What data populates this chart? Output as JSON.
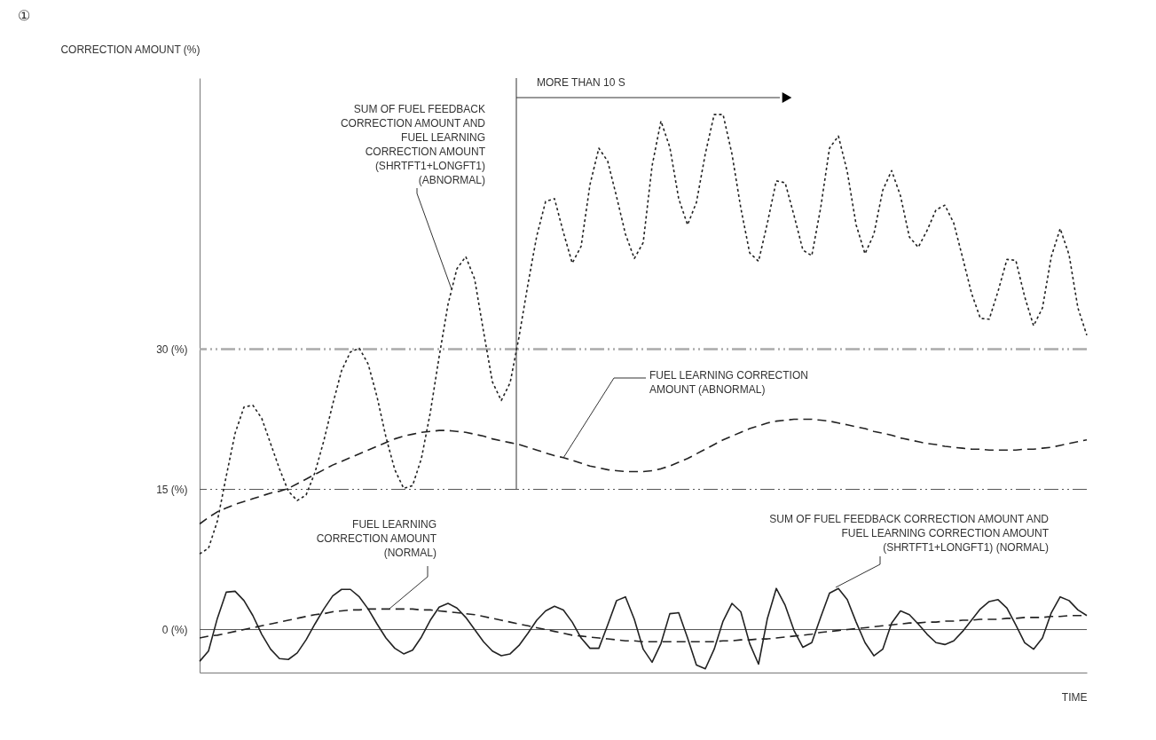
{
  "chart_data": {
    "type": "line",
    "xlabel": "TIME",
    "ylabel": "CORRECTION AMOUNT (%)",
    "categories": [
      null,
      null,
      null,
      null,
      null,
      null,
      null,
      null,
      null,
      null,
      null,
      null,
      null,
      null,
      null,
      null,
      null,
      null,
      null,
      null,
      null,
      null,
      null,
      null,
      null,
      null,
      null,
      null,
      null,
      null,
      null,
      null,
      null,
      null,
      null,
      null,
      null,
      null,
      null,
      null,
      null,
      null,
      null,
      null,
      null,
      null,
      null,
      null,
      null,
      null,
      null,
      null,
      null,
      null,
      null,
      null,
      null,
      null,
      null,
      null,
      null,
      null,
      null,
      null,
      null,
      null,
      null,
      null,
      null,
      null,
      null,
      null,
      null,
      null,
      null,
      null,
      null,
      null,
      null,
      null,
      null,
      null,
      null,
      null,
      null,
      null,
      null,
      null,
      null,
      null,
      null,
      null,
      null,
      null,
      null,
      null,
      null,
      null,
      null,
      null,
      null
    ],
    "ylim": [
      -4.6,
      59
    ],
    "yticks": [
      {
        "value": 0,
        "label": "0 (%)"
      },
      {
        "value": 15,
        "label": "15 (%)"
      },
      {
        "value": 30,
        "label": "30 (%)"
      }
    ],
    "tick_labels": "y",
    "grid": false,
    "marker": "none",
    "series": [
      {
        "color": "#222222",
        "line_style": "dotted",
        "values": [
          8.1,
          8.7,
          11.6,
          16.4,
          21.0,
          23.8,
          24.0,
          22.6,
          19.9,
          17.2,
          14.8,
          13.8,
          14.4,
          16.8,
          20.2,
          24.1,
          27.7,
          29.7,
          30.1,
          28.4,
          24.9,
          20.6,
          17.1,
          15.1,
          15.4,
          18.3,
          23.2,
          29.2,
          34.8,
          38.6,
          39.9,
          37.5,
          31.9,
          26.5,
          24.5,
          26.4,
          31.3,
          36.9,
          42.1,
          45.8,
          46.1,
          42.5,
          39.2,
          41.0,
          47.6,
          51.5,
          50.1,
          46.3,
          42.3,
          39.7,
          41.4,
          49.6,
          54.4,
          51.6,
          46.1,
          43.3,
          45.7,
          50.9,
          55.1,
          55.1,
          50.9,
          45.1,
          40.3,
          39.4,
          43.5,
          48.0,
          47.8,
          44.3,
          40.6,
          40.0,
          45.1,
          51.5,
          52.8,
          49.0,
          43.3,
          40.2,
          42.3,
          47.0,
          49.1,
          46.4,
          42.0,
          40.9,
          42.7,
          44.9,
          45.4,
          43.5,
          39.8,
          36.0,
          33.3,
          33.2,
          36.2,
          39.6,
          39.5,
          35.6,
          32.5,
          34.4,
          39.9,
          42.9,
          40.1,
          34.4,
          31.5
        ]
      },
      {
        "color": "#222222",
        "line_style": "dashed",
        "values": [
          11.3,
          12.0,
          12.6,
          13.0,
          13.4,
          13.7,
          14.0,
          14.3,
          14.6,
          14.8,
          15.1,
          15.6,
          16.1,
          16.6,
          17.1,
          17.6,
          18.0,
          18.4,
          18.8,
          19.2,
          19.6,
          20.0,
          20.4,
          20.7,
          20.9,
          21.1,
          21.2,
          21.3,
          21.3,
          21.2,
          21.1,
          20.9,
          20.7,
          20.4,
          20.2,
          20.0,
          19.8,
          19.5,
          19.2,
          18.9,
          18.6,
          18.4,
          18.1,
          17.8,
          17.5,
          17.3,
          17.1,
          17.0,
          16.9,
          16.9,
          16.9,
          17.0,
          17.2,
          17.5,
          17.9,
          18.3,
          18.8,
          19.3,
          19.8,
          20.3,
          20.7,
          21.1,
          21.5,
          21.8,
          22.1,
          22.3,
          22.4,
          22.5,
          22.5,
          22.5,
          22.4,
          22.3,
          22.1,
          21.9,
          21.7,
          21.5,
          21.2,
          21.0,
          20.8,
          20.5,
          20.3,
          20.1,
          19.9,
          19.8,
          19.6,
          19.5,
          19.4,
          19.3,
          19.3,
          19.2,
          19.2,
          19.2,
          19.2,
          19.3,
          19.3,
          19.4,
          19.5,
          19.7,
          19.9,
          20.1,
          20.3
        ]
      },
      {
        "color": "#222222",
        "line_style": "dashed",
        "values": [
          -0.9,
          -0.7,
          -0.6,
          -0.4,
          -0.2,
          0,
          0.2,
          0.4,
          0.6,
          0.8,
          1.0,
          1.2,
          1.4,
          1.6,
          1.7,
          1.9,
          2.0,
          2.1,
          2.1,
          2.2,
          2.2,
          2.2,
          2.2,
          2.2,
          2.2,
          2.1,
          2.1,
          2.0,
          1.9,
          1.8,
          1.7,
          1.6,
          1.4,
          1.2,
          1.0,
          0.8,
          0.6,
          0.4,
          0.2,
          0,
          -0.2,
          -0.4,
          -0.6,
          -0.7,
          -0.8,
          -0.9,
          -1.0,
          -1.1,
          -1.2,
          -1.2,
          -1.3,
          -1.3,
          -1.3,
          -1.3,
          -1.3,
          -1.3,
          -1.3,
          -1.3,
          -1.3,
          -1.2,
          -1.2,
          -1.1,
          -1.1,
          -1.0,
          -1.0,
          -0.9,
          -0.8,
          -0.7,
          -0.6,
          -0.5,
          -0.3,
          -0.2,
          -0.1,
          0,
          0.1,
          0.2,
          0.3,
          0.4,
          0.5,
          0.6,
          0.7,
          0.7,
          0.8,
          0.8,
          0.9,
          0.9,
          1.0,
          1.0,
          1.1,
          1.1,
          1.1,
          1.2,
          1.2,
          1.3,
          1.3,
          1.3,
          1.4,
          1.4,
          1.5,
          1.5,
          1.5
        ]
      },
      {
        "color": "#222222",
        "line_style": "solid",
        "values": [
          -3.4,
          -2.3,
          1.2,
          4.0,
          4.1,
          3.1,
          1.5,
          -0.5,
          -2.1,
          -3.1,
          -3.2,
          -2.5,
          -1.1,
          0.6,
          2.2,
          3.6,
          4.3,
          4.3,
          3.5,
          2.2,
          0.6,
          -0.9,
          -2.0,
          -2.6,
          -2.2,
          -0.8,
          1.0,
          2.4,
          2.8,
          2.3,
          1.3,
          0,
          -1.3,
          -2.3,
          -2.8,
          -2.6,
          -1.7,
          -0.4,
          1.0,
          2.0,
          2.5,
          2.1,
          0.8,
          -0.9,
          -2.0,
          -2.0,
          0.5,
          3.1,
          3.5,
          1.1,
          -2.1,
          -3.5,
          -1.5,
          1.7,
          1.8,
          -0.9,
          -3.8,
          -4.2,
          -2.1,
          0.9,
          2.8,
          1.9,
          -1.5,
          -3.7,
          1.2,
          4.4,
          2.6,
          -0.1,
          -1.9,
          -1.4,
          1.3,
          3.9,
          4.4,
          3.2,
          0.8,
          -1.4,
          -2.8,
          -2.1,
          0.7,
          2,
          1.6,
          0.6,
          -0.5,
          -1.4,
          -1.6,
          -1.2,
          -0.2,
          1.0,
          2.2,
          3.0,
          3.2,
          2.3,
          0.5,
          -1.4,
          -2.1,
          -0.9,
          1.8,
          3.5,
          3.1,
          2.1,
          1.5
        ]
      }
    ],
    "ref_lines": [
      {
        "axis": "y",
        "value": 30,
        "color": "#aaaaaa",
        "line_style": "dashed"
      },
      {
        "axis": "y",
        "value": 15,
        "color": "#555555",
        "line_style": "dashed"
      },
      {
        "axis": "y",
        "value": 0,
        "color": "#555555",
        "line_style": "solid"
      }
    ],
    "annotations": [
      "①",
      "SUM OF FUEL FEEDBACK\nCORRECTION AMOUNT AND\nFUEL LEARNING\nCORRECTION AMOUNT\n(SHRTFT1+LONGFT1)\n(ABNORMAL)",
      "FUEL LEARNING CORRECTION\nAMOUNT (ABNORMAL)",
      "FUEL LEARNING\nCORRECTION AMOUNT\n(NORMAL)",
      "SUM OF FUEL FEEDBACK CORRECTION AMOUNT AND\nFUEL LEARNING CORRECTION AMOUNT\n(SHRTFT1+LONGFT1) (NORMAL)",
      "MORE THAN 10 S"
    ]
  }
}
